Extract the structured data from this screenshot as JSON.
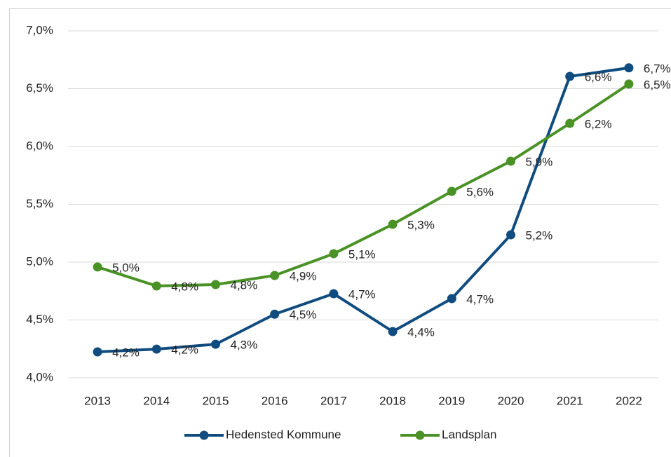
{
  "chart_data": {
    "type": "line",
    "categories": [
      "2013",
      "2014",
      "2015",
      "2016",
      "2017",
      "2018",
      "2019",
      "2020",
      "2021",
      "2022"
    ],
    "series": [
      {
        "name": "Hedensted Kommune",
        "color": "#104c80",
        "values": [
          4.224,
          4.248,
          4.29,
          4.55,
          4.727,
          4.4,
          4.685,
          5.236,
          6.606,
          6.68
        ],
        "value_labels": [
          "4,2%",
          "4,2%",
          "4,3%",
          "4,5%",
          "4,7%",
          "4,4%",
          "4,7%",
          "5,2%",
          "6,6%",
          "6,7%"
        ]
      },
      {
        "name": "Landsplan",
        "color": "#4a9226",
        "values": [
          4.958,
          4.794,
          4.806,
          4.885,
          5.073,
          5.327,
          5.612,
          5.873,
          6.2,
          6.54
        ],
        "value_labels": [
          "5,0%",
          "4,8%",
          "4,8%",
          "4,9%",
          "5,1%",
          "5,3%",
          "5,6%",
          "5,9%",
          "6,2%",
          "6,5%"
        ]
      }
    ],
    "ylim": [
      4,
      7
    ],
    "yticks": [
      {
        "value": 4,
        "label": "4,0%"
      },
      {
        "value": 4.5,
        "label": "4,5%"
      },
      {
        "value": 5,
        "label": "5,0%"
      },
      {
        "value": 5.5,
        "label": "5,5%"
      },
      {
        "value": 6,
        "label": "6,0%"
      },
      {
        "value": 6.5,
        "label": "6,5%"
      },
      {
        "value": 7,
        "label": "7,0%"
      }
    ],
    "grid": true,
    "legend": "bottom"
  }
}
